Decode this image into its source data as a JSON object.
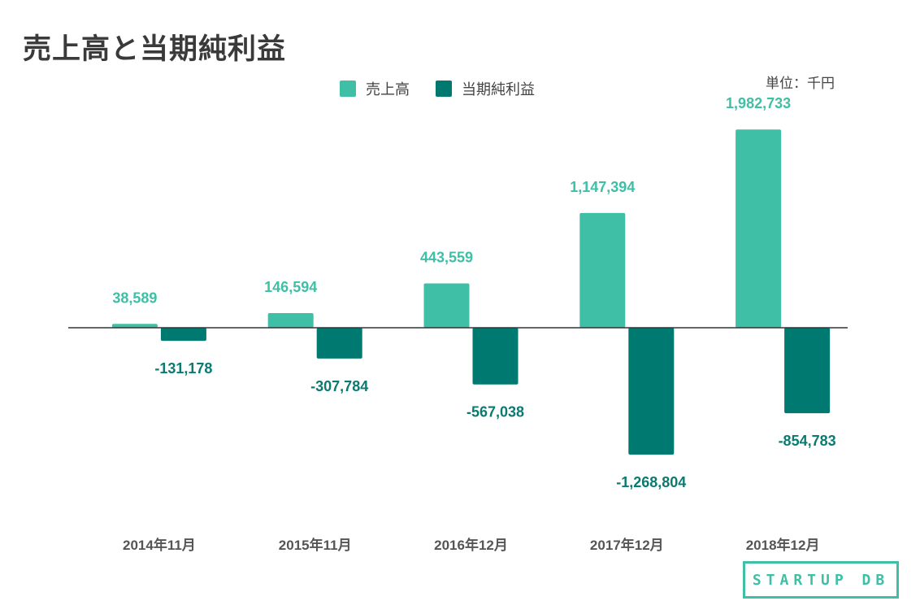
{
  "title": "売上高と当期純利益",
  "unit_label": "単位：千円",
  "legend": [
    {
      "label": "売上高",
      "color": "#3fbfa6"
    },
    {
      "label": "当期純利益",
      "color": "#007a70"
    }
  ],
  "logo_text": "STARTUP DB",
  "chart_data": {
    "type": "bar",
    "categories": [
      "2014年11月",
      "2015年11月",
      "2016年12月",
      "2017年12月",
      "2018年12月"
    ],
    "series": [
      {
        "name": "売上高",
        "color": "#3fbfa6",
        "label_color": "#3fbfa6",
        "values": [
          38589,
          146594,
          443559,
          1147394,
          1982733
        ],
        "labels": [
          "38,589",
          "146,594",
          "443,559",
          "1,147,394",
          "1,982,733"
        ]
      },
      {
        "name": "当期純利益",
        "color": "#007a70",
        "label_color": "#0b7a70",
        "values": [
          -131178,
          -307784,
          -567038,
          -1268804,
          -854783
        ],
        "labels": [
          "-131,178",
          "-307,784",
          "-567,038",
          "-1,268,804",
          "-854,783"
        ]
      }
    ],
    "ylim": [
      -1450000,
      2100000
    ],
    "grid": false,
    "legend_position": "top-center"
  }
}
